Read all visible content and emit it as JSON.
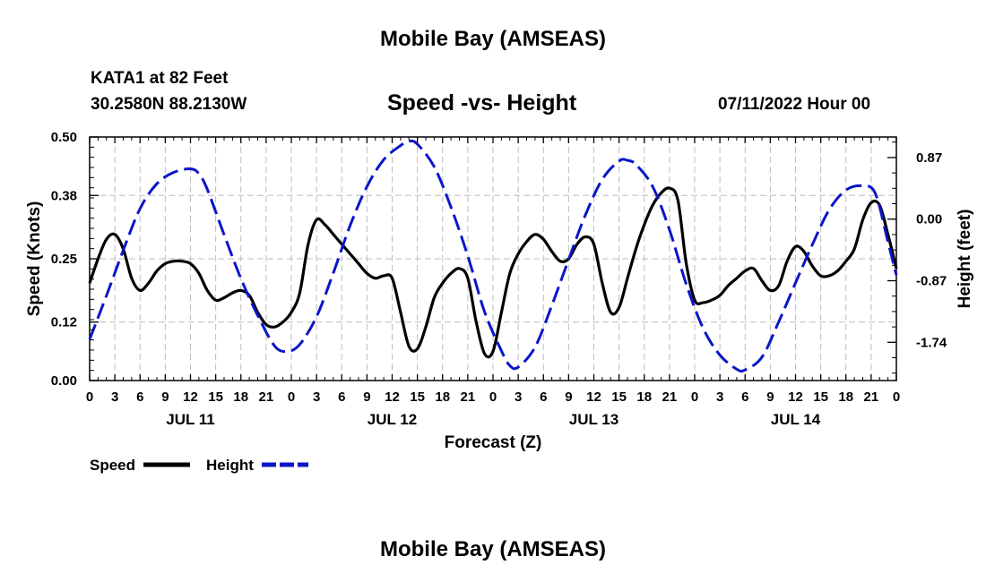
{
  "header": {
    "title": "Mobile Bay (AMSEAS)",
    "station": "KATA1 at 82 Feet",
    "coordinates": "30.2580N  88.2130W",
    "subtitle": "Speed -vs- Height",
    "run_time": "07/11/2022 Hour 00",
    "bottom_title": "Mobile Bay (AMSEAS)"
  },
  "chart_data": {
    "type": "line",
    "title": "Speed -vs- Height",
    "xlabel": "Forecast (Z)",
    "ylabel": "Speed (Knots)",
    "y2label": "Height (feet)",
    "xlim": [
      0,
      96
    ],
    "ylim": [
      0,
      0.5
    ],
    "y2lim": [
      -2.28,
      1.16
    ],
    "x_tick_labels": [
      "0",
      "3",
      "6",
      "9",
      "12",
      "15",
      "18",
      "21",
      "0",
      "3",
      "6",
      "9",
      "12",
      "15",
      "18",
      "21",
      "0",
      "3",
      "6",
      "9",
      "12",
      "15",
      "18",
      "21",
      "0",
      "3",
      "6",
      "9",
      "12",
      "15",
      "18",
      "21",
      "0"
    ],
    "x_tick_step_hours": 3,
    "day_labels": [
      {
        "label": "JUL 11",
        "hour": 12
      },
      {
        "label": "JUL 12",
        "hour": 36
      },
      {
        "label": "JUL 13",
        "hour": 60
      },
      {
        "label": "JUL 14",
        "hour": 84
      }
    ],
    "y_ticks": [
      "0.00",
      "0.12",
      "0.25",
      "0.38",
      "0.50"
    ],
    "y2_ticks": [
      "0.87",
      "0.00",
      "-0.87",
      "-1.74"
    ],
    "grid": true,
    "legend": [
      "Speed",
      "Height"
    ],
    "legend_position": "bottom-left",
    "series": [
      {
        "name": "Speed",
        "axis": "left",
        "color": "#000000",
        "style": "solid",
        "points": [
          [
            0,
            0.2
          ],
          [
            1,
            0.25
          ],
          [
            2,
            0.29
          ],
          [
            3,
            0.3
          ],
          [
            4,
            0.27
          ],
          [
            5,
            0.21
          ],
          [
            6,
            0.185
          ],
          [
            7,
            0.2
          ],
          [
            8,
            0.225
          ],
          [
            9,
            0.24
          ],
          [
            10,
            0.245
          ],
          [
            11,
            0.245
          ],
          [
            12,
            0.24
          ],
          [
            13,
            0.22
          ],
          [
            14,
            0.185
          ],
          [
            15,
            0.165
          ],
          [
            16,
            0.17
          ],
          [
            17,
            0.18
          ],
          [
            18,
            0.185
          ],
          [
            19,
            0.175
          ],
          [
            20,
            0.14
          ],
          [
            21,
            0.115
          ],
          [
            22,
            0.11
          ],
          [
            23,
            0.12
          ],
          [
            24,
            0.14
          ],
          [
            25,
            0.18
          ],
          [
            26,
            0.28
          ],
          [
            27,
            0.33
          ],
          [
            28,
            0.32
          ],
          [
            29,
            0.3
          ],
          [
            30,
            0.28
          ],
          [
            31,
            0.26
          ],
          [
            32,
            0.24
          ],
          [
            33,
            0.22
          ],
          [
            34,
            0.21
          ],
          [
            35,
            0.215
          ],
          [
            36,
            0.21
          ],
          [
            37,
            0.14
          ],
          [
            38,
            0.07
          ],
          [
            39,
            0.065
          ],
          [
            40,
            0.11
          ],
          [
            41,
            0.17
          ],
          [
            42,
            0.2
          ],
          [
            43,
            0.22
          ],
          [
            44,
            0.23
          ],
          [
            45,
            0.21
          ],
          [
            46,
            0.12
          ],
          [
            47,
            0.055
          ],
          [
            48,
            0.06
          ],
          [
            49,
            0.14
          ],
          [
            50,
            0.22
          ],
          [
            51,
            0.26
          ],
          [
            52,
            0.285
          ],
          [
            53,
            0.3
          ],
          [
            54,
            0.29
          ],
          [
            55,
            0.265
          ],
          [
            56,
            0.245
          ],
          [
            57,
            0.25
          ],
          [
            58,
            0.28
          ],
          [
            59,
            0.295
          ],
          [
            60,
            0.28
          ],
          [
            61,
            0.2
          ],
          [
            62,
            0.14
          ],
          [
            63,
            0.15
          ],
          [
            64,
            0.21
          ],
          [
            65,
            0.27
          ],
          [
            66,
            0.32
          ],
          [
            67,
            0.36
          ],
          [
            68,
            0.385
          ],
          [
            69,
            0.395
          ],
          [
            70,
            0.37
          ],
          [
            71,
            0.24
          ],
          [
            72,
            0.165
          ],
          [
            73,
            0.16
          ],
          [
            74,
            0.165
          ],
          [
            75,
            0.175
          ],
          [
            76,
            0.195
          ],
          [
            77,
            0.21
          ],
          [
            78,
            0.225
          ],
          [
            79,
            0.23
          ],
          [
            80,
            0.205
          ],
          [
            81,
            0.185
          ],
          [
            82,
            0.195
          ],
          [
            83,
            0.245
          ],
          [
            84,
            0.275
          ],
          [
            85,
            0.265
          ],
          [
            86,
            0.235
          ],
          [
            87,
            0.215
          ],
          [
            88,
            0.215
          ],
          [
            89,
            0.225
          ],
          [
            90,
            0.245
          ],
          [
            91,
            0.27
          ],
          [
            92,
            0.33
          ],
          [
            93,
            0.365
          ],
          [
            94,
            0.36
          ],
          [
            95,
            0.3
          ],
          [
            96,
            0.23
          ]
        ]
      },
      {
        "name": "Height",
        "axis": "right",
        "color": "#0a16c8",
        "style": "dashed",
        "points": [
          [
            0,
            -1.7
          ],
          [
            2,
            -1.08
          ],
          [
            4,
            -0.44
          ],
          [
            6,
            0.15
          ],
          [
            8,
            0.5
          ],
          [
            10,
            0.66
          ],
          [
            12,
            0.71
          ],
          [
            13,
            0.64
          ],
          [
            14,
            0.42
          ],
          [
            16,
            -0.22
          ],
          [
            18,
            -0.84
          ],
          [
            20,
            -1.36
          ],
          [
            22,
            -1.79
          ],
          [
            23.5,
            -1.87
          ],
          [
            25,
            -1.77
          ],
          [
            27,
            -1.38
          ],
          [
            29,
            -0.76
          ],
          [
            31,
            -0.09
          ],
          [
            33,
            0.46
          ],
          [
            35,
            0.84
          ],
          [
            37,
            1.04
          ],
          [
            38,
            1.1
          ],
          [
            39,
            1.06
          ],
          [
            41,
            0.74
          ],
          [
            43,
            0.17
          ],
          [
            45,
            -0.52
          ],
          [
            47,
            -1.31
          ],
          [
            49,
            -1.86
          ],
          [
            50,
            -2.07
          ],
          [
            51,
            -2.09
          ],
          [
            53,
            -1.81
          ],
          [
            55,
            -1.22
          ],
          [
            57,
            -0.57
          ],
          [
            59,
            0.06
          ],
          [
            61,
            0.56
          ],
          [
            63,
            0.82
          ],
          [
            64,
            0.83
          ],
          [
            65,
            0.77
          ],
          [
            67,
            0.46
          ],
          [
            69,
            -0.15
          ],
          [
            71,
            -0.92
          ],
          [
            73,
            -1.54
          ],
          [
            75,
            -1.92
          ],
          [
            77,
            -2.12
          ],
          [
            78,
            -2.13
          ],
          [
            80,
            -1.95
          ],
          [
            82,
            -1.45
          ],
          [
            84,
            -0.9
          ],
          [
            86,
            -0.36
          ],
          [
            88,
            0.13
          ],
          [
            90,
            0.41
          ],
          [
            92,
            0.47
          ],
          [
            93.5,
            0.36
          ],
          [
            95,
            -0.32
          ],
          [
            96,
            -0.79
          ]
        ]
      }
    ]
  }
}
